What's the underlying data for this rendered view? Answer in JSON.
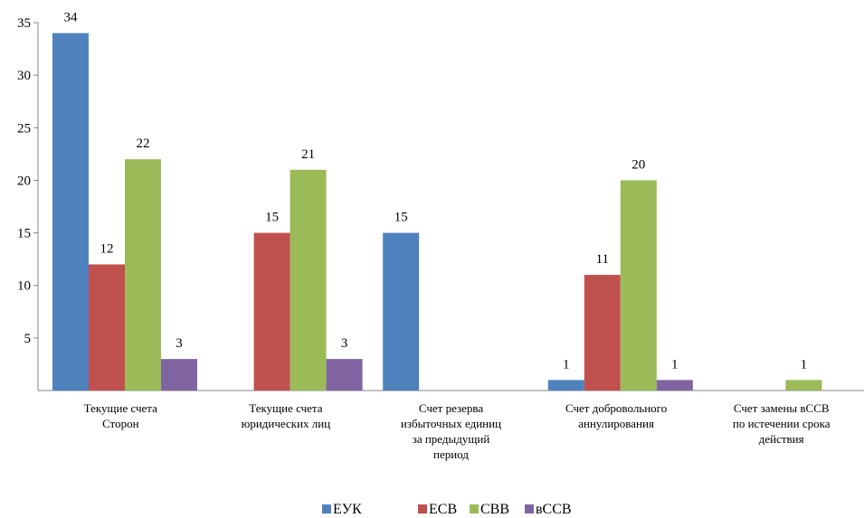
{
  "chart_data": {
    "type": "bar",
    "categories": [
      [
        "Текущие счета",
        "Сторон"
      ],
      [
        "Текущие счета",
        "юридических лиц"
      ],
      [
        "Счет резерва",
        "избыточных единиц",
        "за предыдущий",
        "период"
      ],
      [
        "Счет добровольного",
        "аннулирования"
      ],
      [
        "Счет замены вССВ",
        "по истечении срока",
        "действия"
      ]
    ],
    "series": [
      {
        "name": "ЕУК",
        "color": "#4F81BD",
        "values": [
          34,
          null,
          15,
          1,
          null
        ]
      },
      {
        "name": "ЕСВ",
        "color": "#C0504D",
        "values": [
          12,
          15,
          null,
          11,
          null
        ]
      },
      {
        "name": "СВВ",
        "color": "#9BBB59",
        "values": [
          22,
          21,
          null,
          20,
          1
        ]
      },
      {
        "name": "вССВ",
        "color": "#8064A2",
        "values": [
          3,
          3,
          null,
          1,
          null
        ]
      }
    ],
    "ylim": [
      0,
      35
    ],
    "yticks": [
      5,
      10,
      15,
      20,
      25,
      30,
      35
    ],
    "grid": false,
    "legend_position": "bottom"
  }
}
